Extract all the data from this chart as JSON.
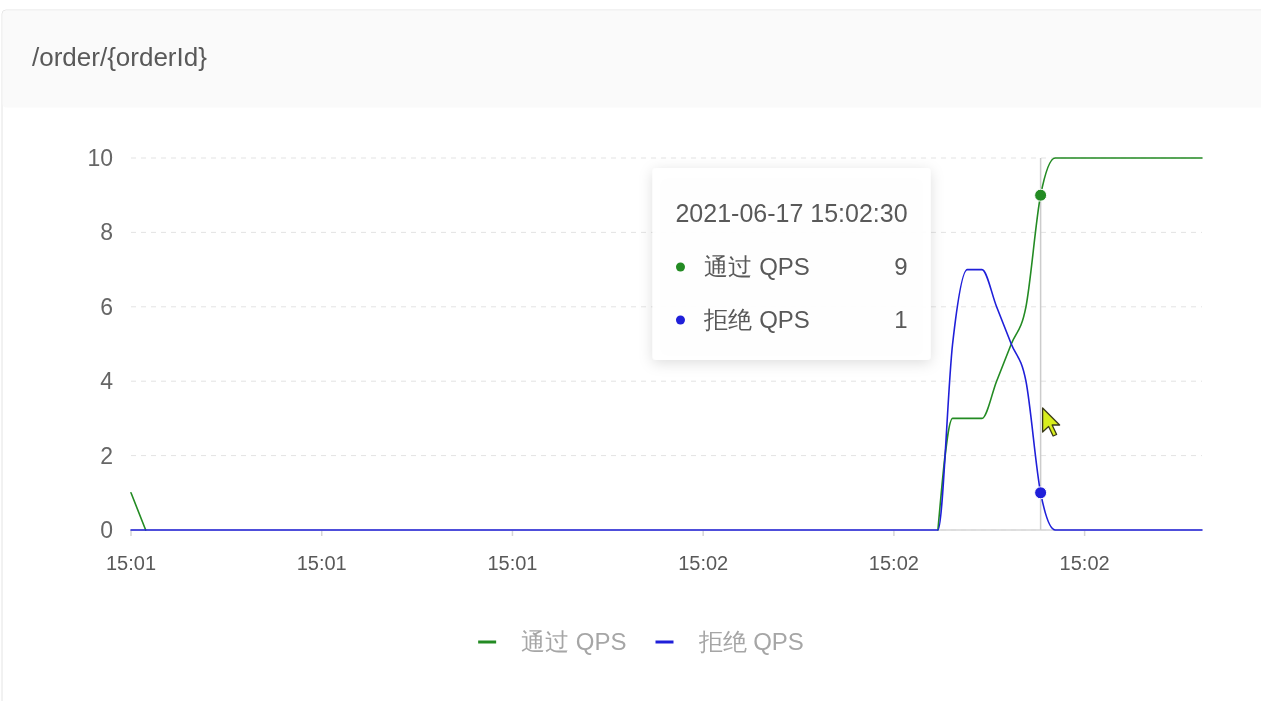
{
  "chart_data": {
    "type": "line",
    "title": "/order/{orderId}",
    "x": [
      "2021-06-17T15:01:28",
      "2021-06-17T15:01:29",
      "2021-06-17T15:01:30",
      "2021-06-17T15:01:31",
      "2021-06-17T15:01:32",
      "2021-06-17T15:01:33",
      "2021-06-17T15:01:34",
      "2021-06-17T15:01:35",
      "2021-06-17T15:01:36",
      "2021-06-17T15:01:37",
      "2021-06-17T15:01:38",
      "2021-06-17T15:01:39",
      "2021-06-17T15:01:40",
      "2021-06-17T15:01:41",
      "2021-06-17T15:01:42",
      "2021-06-17T15:01:43",
      "2021-06-17T15:01:44",
      "2021-06-17T15:01:45",
      "2021-06-17T15:01:46",
      "2021-06-17T15:01:47",
      "2021-06-17T15:01:48",
      "2021-06-17T15:01:49",
      "2021-06-17T15:01:50",
      "2021-06-17T15:01:51",
      "2021-06-17T15:01:52",
      "2021-06-17T15:01:53",
      "2021-06-17T15:01:54",
      "2021-06-17T15:01:55",
      "2021-06-17T15:01:56",
      "2021-06-17T15:01:57",
      "2021-06-17T15:01:58",
      "2021-06-17T15:01:59",
      "2021-06-17T15:02:00",
      "2021-06-17T15:02:01",
      "2021-06-17T15:02:02",
      "2021-06-17T15:02:03",
      "2021-06-17T15:02:04",
      "2021-06-17T15:02:05",
      "2021-06-17T15:02:06",
      "2021-06-17T15:02:07",
      "2021-06-17T15:02:08",
      "2021-06-17T15:02:09",
      "2021-06-17T15:02:10",
      "2021-06-17T15:02:11",
      "2021-06-17T15:02:12",
      "2021-06-17T15:02:13",
      "2021-06-17T15:02:14",
      "2021-06-17T15:02:15",
      "2021-06-17T15:02:16",
      "2021-06-17T15:02:17",
      "2021-06-17T15:02:18",
      "2021-06-17T15:02:19",
      "2021-06-17T15:02:20",
      "2021-06-17T15:02:21",
      "2021-06-17T15:02:22",
      "2021-06-17T15:02:23",
      "2021-06-17T15:02:24",
      "2021-06-17T15:02:25",
      "2021-06-17T15:02:26",
      "2021-06-17T15:02:27",
      "2021-06-17T15:02:28",
      "2021-06-17T15:02:29",
      "2021-06-17T15:02:30",
      "2021-06-17T15:02:31",
      "2021-06-17T15:02:32",
      "2021-06-17T15:02:33",
      "2021-06-17T15:02:34",
      "2021-06-17T15:02:35",
      "2021-06-17T15:02:36",
      "2021-06-17T15:02:37",
      "2021-06-17T15:02:38",
      "2021-06-17T15:02:39",
      "2021-06-17T15:02:40",
      "2021-06-17T15:02:41"
    ],
    "series": [
      {
        "name": "通过 QPS",
        "color": "#238b23",
        "values": [
          1,
          0,
          null,
          null,
          null,
          null,
          null,
          null,
          null,
          null,
          null,
          null,
          null,
          null,
          null,
          null,
          null,
          null,
          null,
          null,
          null,
          null,
          null,
          null,
          null,
          null,
          null,
          null,
          null,
          null,
          null,
          null,
          null,
          null,
          null,
          null,
          null,
          null,
          null,
          null,
          null,
          null,
          null,
          null,
          null,
          null,
          null,
          null,
          null,
          null,
          null,
          null,
          null,
          null,
          null,
          0,
          3,
          3,
          3,
          4,
          5,
          6,
          9,
          10,
          10,
          10,
          10,
          10,
          10,
          10,
          10,
          10,
          10,
          10
        ]
      },
      {
        "name": "拒绝 QPS",
        "color": "#1f1fd9",
        "values": [
          0,
          0,
          0,
          0,
          0,
          0,
          0,
          0,
          0,
          0,
          0,
          0,
          0,
          0,
          0,
          0,
          0,
          0,
          0,
          0,
          0,
          0,
          0,
          0,
          0,
          0,
          0,
          0,
          0,
          0,
          0,
          0,
          0,
          0,
          0,
          0,
          0,
          0,
          0,
          0,
          0,
          0,
          0,
          0,
          0,
          0,
          0,
          0,
          0,
          0,
          0,
          0,
          0,
          0,
          0,
          0,
          5,
          7,
          7,
          6,
          5,
          4,
          1,
          0,
          0,
          0,
          0,
          0,
          0,
          0,
          0,
          0,
          0,
          0
        ]
      }
    ],
    "xlim": [
      "2021-06-17T15:01:28",
      "2021-06-17T15:02:41"
    ],
    "xticks": [
      {
        "value": "2021-06-17T15:01:28",
        "label": "15:01"
      },
      {
        "value": "2021-06-17T15:01:41",
        "label": "15:01"
      },
      {
        "value": "2021-06-17T15:01:54",
        "label": "15:01"
      },
      {
        "value": "2021-06-17T15:02:07",
        "label": "15:02"
      },
      {
        "value": "2021-06-17T15:02:20",
        "label": "15:02"
      },
      {
        "value": "2021-06-17T15:02:33",
        "label": "15:02"
      }
    ],
    "ylim": [
      0,
      10
    ],
    "yticks": [
      0,
      2,
      4,
      6,
      8,
      10
    ],
    "grid": "y",
    "legend": "bottom",
    "ref_lines": [
      {
        "axis": "x",
        "value": "2021-06-17T15:02:30",
        "color": "#cccccc"
      }
    ],
    "annotations": [
      "2021-06-17 15:02:30",
      "通过 QPS",
      "9",
      "拒绝 QPS",
      "1"
    ]
  }
}
